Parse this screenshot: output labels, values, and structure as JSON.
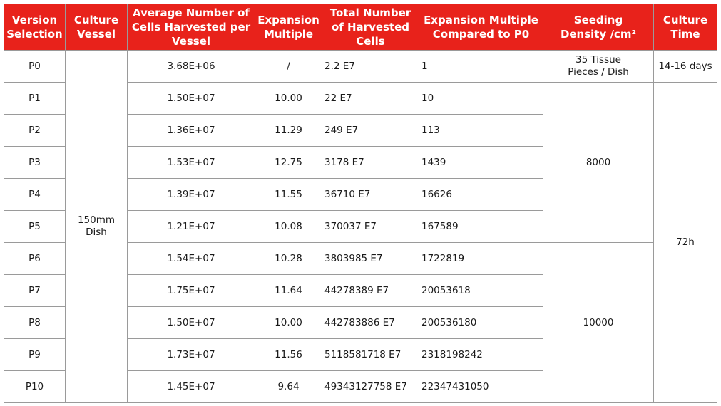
{
  "header": {
    "version": [
      "Version",
      "Selection"
    ],
    "vessel": [
      "Culture",
      "Vessel"
    ],
    "avg": [
      "Average Number of",
      "Cells Harvested per",
      "Vessel"
    ],
    "expansion": [
      "Expansion",
      "Multiple"
    ],
    "total": [
      "Total Number",
      "of Harvested",
      "Cells"
    ],
    "multiple_p0": [
      "Expansion Multiple",
      "Compared to P0"
    ],
    "density": [
      "Seeding",
      "Density /cm²"
    ],
    "time": [
      "Culture",
      "Time"
    ]
  },
  "vessel": [
    "150mm",
    "Dish"
  ],
  "density": {
    "p0": [
      "35 Tissue",
      "Pieces / Dish"
    ],
    "p1_p5": "8000",
    "p6_p10": "10000"
  },
  "time": {
    "p0": "14-16 days",
    "p1_p10": "72h"
  },
  "rows": [
    {
      "version": "P0",
      "avg": "3.68E+06",
      "expansion": "/",
      "total": "2.2 E7",
      "multiple_p0": "1"
    },
    {
      "version": "P1",
      "avg": "1.50E+07",
      "expansion": "10.00",
      "total": "22 E7",
      "multiple_p0": "10"
    },
    {
      "version": "P2",
      "avg": "1.36E+07",
      "expansion": "11.29",
      "total": "249 E7",
      "multiple_p0": "113"
    },
    {
      "version": "P3",
      "avg": "1.53E+07",
      "expansion": "12.75",
      "total": "3178 E7",
      "multiple_p0": "1439"
    },
    {
      "version": "P4",
      "avg": "1.39E+07",
      "expansion": "11.55",
      "total": "36710 E7",
      "multiple_p0": "16626"
    },
    {
      "version": "P5",
      "avg": "1.21E+07",
      "expansion": "10.08",
      "total": "370037 E7",
      "multiple_p0": "167589"
    },
    {
      "version": "P6",
      "avg": "1.54E+07",
      "expansion": "10.28",
      "total": "3803985 E7",
      "multiple_p0": "1722819"
    },
    {
      "version": "P7",
      "avg": "1.75E+07",
      "expansion": "11.64",
      "total": "44278389 E7",
      "multiple_p0": "20053618"
    },
    {
      "version": "P8",
      "avg": "1.50E+07",
      "expansion": "10.00",
      "total": "442783886 E7",
      "multiple_p0": "200536180"
    },
    {
      "version": "P9",
      "avg": "1.73E+07",
      "expansion": "11.56",
      "total": "5118581718 E7",
      "multiple_p0": "2318198242"
    },
    {
      "version": "P10",
      "avg": "1.45E+07",
      "expansion": "9.64",
      "total": "49343127758 E7",
      "multiple_p0": "22347431050"
    }
  ]
}
